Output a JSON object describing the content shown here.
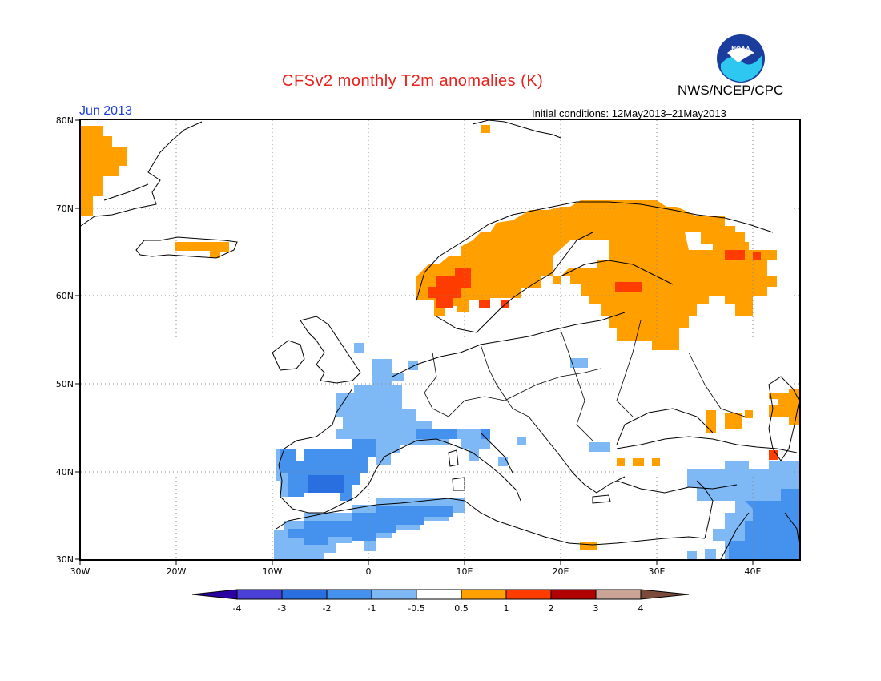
{
  "header": {
    "title": "CFSv2 monthly T2m anomalies (K)",
    "agency": "NWS/NCEP/CPC",
    "logo_text": "NOAA",
    "period": "Jun 2013",
    "initial_conditions": "Initial conditions: 12May2013–21May2013"
  },
  "map": {
    "lon_labels": [
      "30W",
      "20W",
      "10W",
      "0",
      "10E",
      "20E",
      "30E",
      "40E"
    ],
    "lat_labels": [
      "80N",
      "70N",
      "60N",
      "50N",
      "40N",
      "30N"
    ],
    "extent": {
      "lon_min": -30,
      "lon_max": 45,
      "lat_min": 30,
      "lat_max": 80
    },
    "grid": true
  },
  "colorbar": {
    "levels": [
      "-4",
      "-3",
      "-2",
      "-1",
      "-0.5",
      "0.5",
      "1",
      "2",
      "3",
      "4"
    ],
    "colors": [
      "#2b00a3",
      "#4a3fd6",
      "#2a6fe0",
      "#4592ee",
      "#7fb9f5",
      "#ffffff",
      "#ff9f00",
      "#ff3c00",
      "#b10000",
      "#c9a497",
      "#7a4a3a"
    ]
  },
  "anomaly_regions": [
    {
      "name": "greenland-east-warm",
      "category": "0.5 to 1",
      "color": "#ff9f00"
    },
    {
      "name": "scandinavia-warm",
      "category": "0.5 to 1",
      "color": "#ff9f00"
    },
    {
      "name": "norway-southwest-warm",
      "category": "1 to 2",
      "color": "#ff3c00"
    },
    {
      "name": "iberia-cool",
      "category": "-2 to -3",
      "color": "#2a6fe0"
    },
    {
      "name": "france-cool",
      "category": "-0.5 to -1",
      "color": "#7fb9f5"
    },
    {
      "name": "north-africa-cool",
      "category": "-1 to -2",
      "color": "#4592ee"
    },
    {
      "name": "middle-east-cool",
      "category": "-0.5 to -2",
      "color": "#4592ee"
    },
    {
      "name": "caucasus-warm",
      "category": "0.5 to 1",
      "color": "#ff9f00"
    }
  ]
}
